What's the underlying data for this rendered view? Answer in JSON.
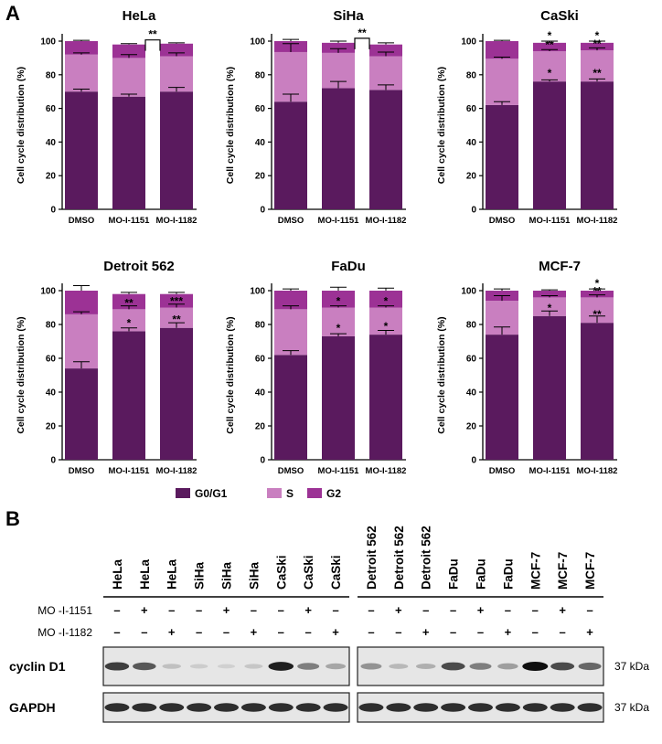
{
  "panel_a_label": "A",
  "panel_b_label": "B",
  "colors": {
    "g0g1": "#5a1a5e",
    "s": "#c97fc0",
    "g2": "#9c3295"
  },
  "chart_data": [
    {
      "type": "bar",
      "stacked": true,
      "title": "HeLa",
      "ylabel": "Cell cycle distribution (%)",
      "ylim": [
        0,
        100
      ],
      "yticks": [
        0,
        20,
        40,
        60,
        80,
        100
      ],
      "categories": [
        "DMSO",
        "MO-I-1151",
        "MO-I-1182"
      ],
      "series": [
        {
          "name": "G0/G1",
          "values": [
            70,
            67,
            70
          ]
        },
        {
          "name": "S",
          "values": [
            22,
            23,
            21
          ]
        },
        {
          "name": "G2",
          "values": [
            8,
            8,
            7.5
          ]
        }
      ],
      "errors": {
        "g0g1": [
          1.5,
          1.5,
          2.5
        ],
        "total": [
          0.5,
          0.5,
          0.5
        ],
        "cum_s": [
          1,
          2,
          2
        ]
      },
      "annotations": {
        "g0g1": [
          "",
          "",
          ""
        ],
        "s": [
          "",
          "",
          ""
        ],
        "g2": [
          "",
          "",
          ""
        ]
      },
      "brackets": [
        {
          "from": 1,
          "to": 2,
          "label": "**"
        }
      ]
    },
    {
      "type": "bar",
      "stacked": true,
      "title": "SiHa",
      "ylabel": "Cell cycle distribution (%)",
      "ylim": [
        0,
        100
      ],
      "yticks": [
        0,
        20,
        40,
        60,
        80,
        100
      ],
      "categories": [
        "DMSO",
        "MO-I-1151",
        "MO-I-1182"
      ],
      "series": [
        {
          "name": "G0/G1",
          "values": [
            64,
            72,
            71
          ]
        },
        {
          "name": "S",
          "values": [
            29.5,
            21,
            20
          ]
        },
        {
          "name": "G2",
          "values": [
            6.5,
            6,
            7
          ]
        }
      ],
      "errors": {
        "g0g1": [
          4.5,
          4,
          3
        ],
        "total": [
          1,
          1,
          1
        ],
        "cum_s": [
          5,
          2.5,
          2.5
        ]
      },
      "annotations": {
        "g0g1": [
          "",
          "",
          ""
        ],
        "s": [
          "",
          "",
          ""
        ],
        "g2": [
          "",
          "",
          ""
        ]
      },
      "brackets": [
        {
          "from": 1,
          "to": 2,
          "label": "**"
        }
      ]
    },
    {
      "type": "bar",
      "stacked": true,
      "title": "CaSki",
      "ylabel": "Cell cycle distribution (%)",
      "ylim": [
        0,
        100
      ],
      "yticks": [
        0,
        20,
        40,
        60,
        80,
        100
      ],
      "categories": [
        "DMSO",
        "MO-I-1151",
        "MO-I-1182"
      ],
      "series": [
        {
          "name": "G0/G1",
          "values": [
            62,
            76,
            76
          ]
        },
        {
          "name": "S",
          "values": [
            27.5,
            18,
            18.5
          ]
        },
        {
          "name": "G2",
          "values": [
            10.5,
            5,
            4.5
          ]
        }
      ],
      "errors": {
        "g0g1": [
          2,
          1,
          1.5
        ],
        "total": [
          0.5,
          1,
          1
        ],
        "cum_s": [
          1,
          1,
          1.5
        ]
      },
      "annotations": {
        "g0g1": [
          "",
          "*",
          "**"
        ],
        "s": [
          "",
          "**",
          "**"
        ],
        "g2": [
          "",
          "*",
          "*"
        ]
      },
      "brackets": []
    },
    {
      "type": "bar",
      "stacked": true,
      "title": "Detroit 562",
      "ylabel": "Cell cycle distribution (%)",
      "ylim": [
        0,
        100
      ],
      "yticks": [
        0,
        20,
        40,
        60,
        80,
        100
      ],
      "categories": [
        "DMSO",
        "MO-I-1151",
        "MO-I-1182"
      ],
      "series": [
        {
          "name": "G0/G1",
          "values": [
            54,
            76,
            78
          ]
        },
        {
          "name": "S",
          "values": [
            32,
            13,
            12
          ]
        },
        {
          "name": "G2",
          "values": [
            14,
            9,
            8
          ]
        }
      ],
      "errors": {
        "g0g1": [
          4,
          2,
          3
        ],
        "total": [
          3,
          1,
          1
        ],
        "cum_s": [
          1.5,
          2,
          2
        ]
      },
      "annotations": {
        "g0g1": [
          "",
          "*",
          "**"
        ],
        "s": [
          "",
          "**",
          "***"
        ],
        "g2": [
          "",
          "",
          ""
        ]
      },
      "brackets": []
    },
    {
      "type": "bar",
      "stacked": true,
      "title": "FaDu",
      "ylabel": "Cell cycle distribution (%)",
      "ylim": [
        0,
        100
      ],
      "yticks": [
        0,
        20,
        40,
        60,
        80,
        100
      ],
      "categories": [
        "DMSO",
        "MO-I-1151",
        "MO-I-1182"
      ],
      "series": [
        {
          "name": "G0/G1",
          "values": [
            62,
            73,
            74
          ]
        },
        {
          "name": "S",
          "values": [
            27,
            17,
            16
          ]
        },
        {
          "name": "G2",
          "values": [
            11,
            10,
            10
          ]
        }
      ],
      "errors": {
        "g0g1": [
          2.5,
          1.5,
          2.5
        ],
        "total": [
          1,
          2,
          1.5
        ],
        "cum_s": [
          2,
          1,
          1
        ]
      },
      "annotations": {
        "g0g1": [
          "",
          "*",
          "*"
        ],
        "s": [
          "",
          "*",
          "*"
        ],
        "g2": [
          "",
          "",
          ""
        ]
      },
      "brackets": []
    },
    {
      "type": "bar",
      "stacked": true,
      "title": "MCF-7",
      "ylabel": "Cell cycle distribution (%)",
      "ylim": [
        0,
        100
      ],
      "yticks": [
        0,
        20,
        40,
        60,
        80,
        100
      ],
      "categories": [
        "DMSO",
        "MO-I-1151",
        "MO-I-1182"
      ],
      "series": [
        {
          "name": "G0/G1",
          "values": [
            74,
            85,
            81
          ]
        },
        {
          "name": "S",
          "values": [
            20,
            11,
            15
          ]
        },
        {
          "name": "G2",
          "values": [
            6,
            4,
            4
          ]
        }
      ],
      "errors": {
        "g0g1": [
          4.5,
          3,
          4
        ],
        "total": [
          1,
          0.5,
          1
        ],
        "cum_s": [
          3,
          1,
          1.5
        ]
      },
      "annotations": {
        "g0g1": [
          "",
          "*",
          "**"
        ],
        "s": [
          "",
          "",
          "**"
        ],
        "g2": [
          "",
          "",
          "*"
        ]
      },
      "brackets": []
    }
  ],
  "legend": [
    {
      "name": "G0/G1",
      "color": "#5a1a5e"
    },
    {
      "name": "S",
      "color": "#c97fc0"
    },
    {
      "name": "G2",
      "color": "#9c3295"
    }
  ],
  "blot": {
    "lanes_left": [
      "HeLa",
      "HeLa",
      "HeLa",
      "SiHa",
      "SiHa",
      "SiHa",
      "CaSki",
      "CaSki",
      "CaSki"
    ],
    "lanes_right": [
      "Detroit 562",
      "Detroit 562",
      "Detroit 562",
      "FaDu",
      "FaDu",
      "FaDu",
      "MCF-7",
      "MCF-7",
      "MCF-7"
    ],
    "treatments": [
      {
        "label": "MO -I-1151",
        "marks": [
          "–",
          "+",
          "–"
        ]
      },
      {
        "label": "MO -I-1182",
        "marks": [
          "–",
          "–",
          "+"
        ]
      }
    ],
    "rows": [
      {
        "label": "cyclin D1",
        "kda": "37  kDa",
        "left": [
          0.85,
          0.75,
          0.25,
          0.15,
          0.12,
          0.2,
          0.95,
          0.6,
          0.4
        ],
        "right": [
          0.5,
          0.3,
          0.35,
          0.8,
          0.6,
          0.45,
          1.0,
          0.8,
          0.7
        ]
      },
      {
        "label": "GAPDH",
        "kda": "37  kDa",
        "left": [
          0.9,
          0.9,
          0.9,
          0.9,
          0.9,
          0.9,
          0.9,
          0.9,
          0.9
        ],
        "right": [
          0.9,
          0.9,
          0.9,
          0.9,
          0.9,
          0.9,
          0.9,
          0.9,
          0.9
        ]
      }
    ]
  }
}
